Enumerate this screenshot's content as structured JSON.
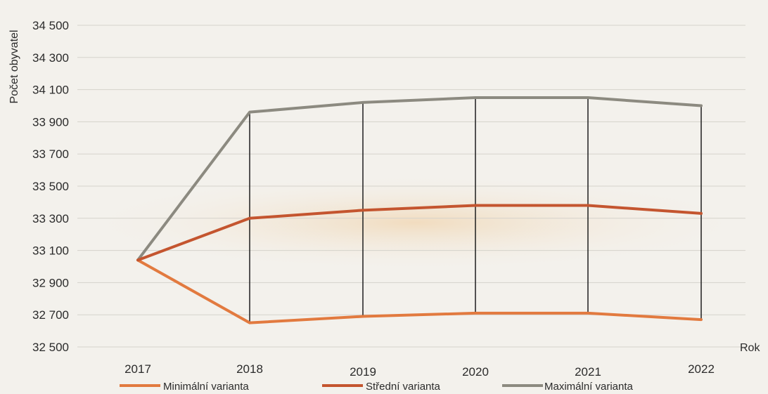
{
  "chart_data": {
    "type": "line",
    "title": "",
    "xlabel": "Rok",
    "ylabel": "Počet obyvatel",
    "x": [
      "2017",
      "2018",
      "2019",
      "2020",
      "2021",
      "2022"
    ],
    "ylim": [
      32500,
      34500
    ],
    "yticks": [
      "32 500",
      "32 700",
      "32 900",
      "33 100",
      "33 300",
      "33 500",
      "33 700",
      "33 900",
      "34 100",
      "34 300",
      "34 500"
    ],
    "grid": true,
    "legend_position": "bottom",
    "series": [
      {
        "name": "Minimální varianta",
        "color": "#e27a3f",
        "values": [
          33040,
          32650,
          32690,
          32710,
          32710,
          32670
        ]
      },
      {
        "name": "Střední varianta",
        "color": "#c4552f",
        "values": [
          33040,
          33300,
          33350,
          33380,
          33380,
          33330
        ]
      },
      {
        "name": "Maximální varianta",
        "color": "#8c8a80",
        "values": [
          33040,
          33960,
          34020,
          34050,
          34050,
          34000
        ]
      }
    ]
  }
}
